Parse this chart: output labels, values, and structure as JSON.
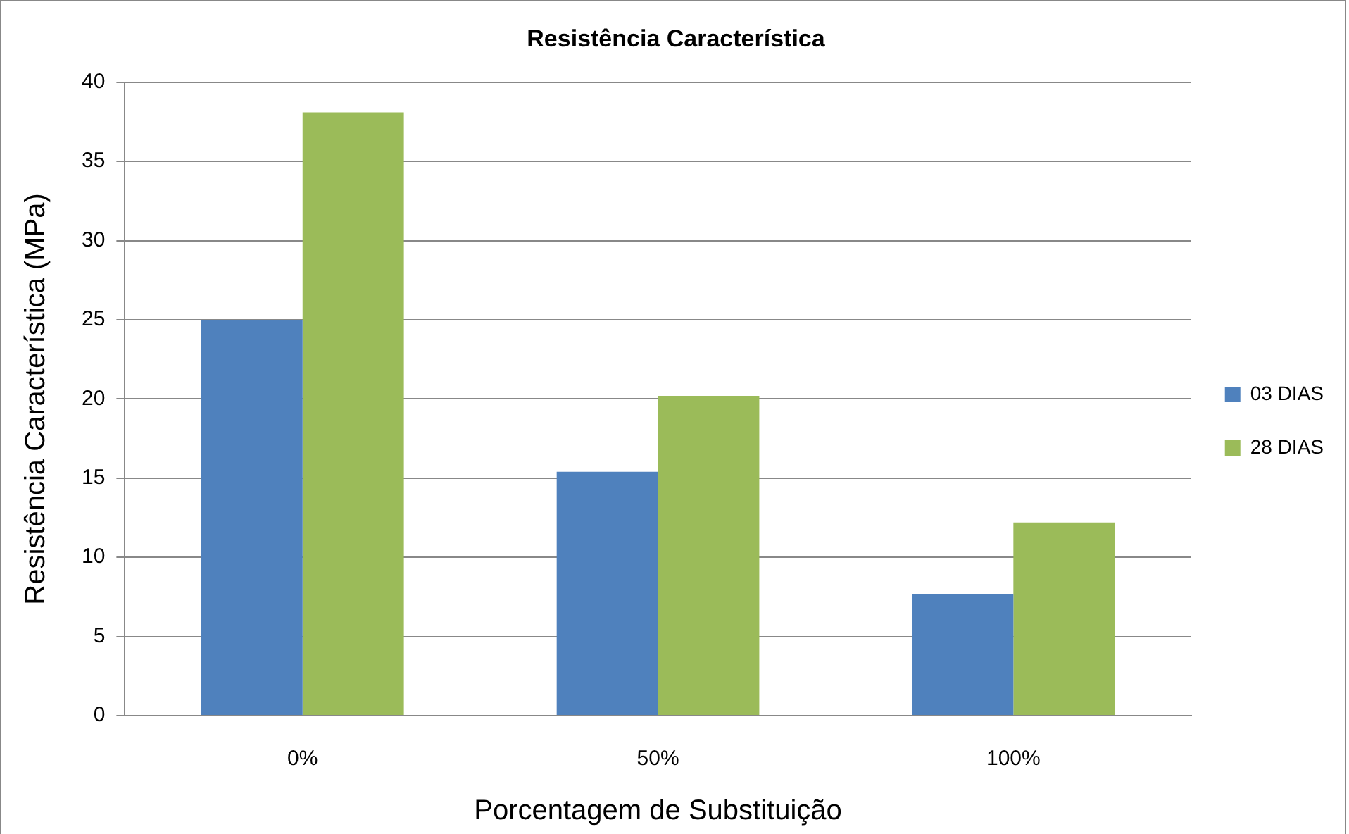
{
  "chart_data": {
    "type": "bar",
    "title": "Resistência Característica",
    "xlabel": "Porcentagem de Substituição",
    "ylabel": "Resistência Característica (MPa)",
    "categories": [
      "0%",
      "50%",
      "100%"
    ],
    "series": [
      {
        "name": "03 DIAS",
        "color": "#4f81bd",
        "values": [
          25.0,
          15.4,
          7.7
        ]
      },
      {
        "name": "28 DIAS",
        "color": "#9bbb59",
        "values": [
          38.1,
          20.2,
          12.2
        ]
      }
    ],
    "ylim": [
      0,
      40
    ],
    "yticks": [
      0,
      5,
      10,
      15,
      20,
      25,
      30,
      35,
      40
    ],
    "grid": "y",
    "legend": "right"
  }
}
